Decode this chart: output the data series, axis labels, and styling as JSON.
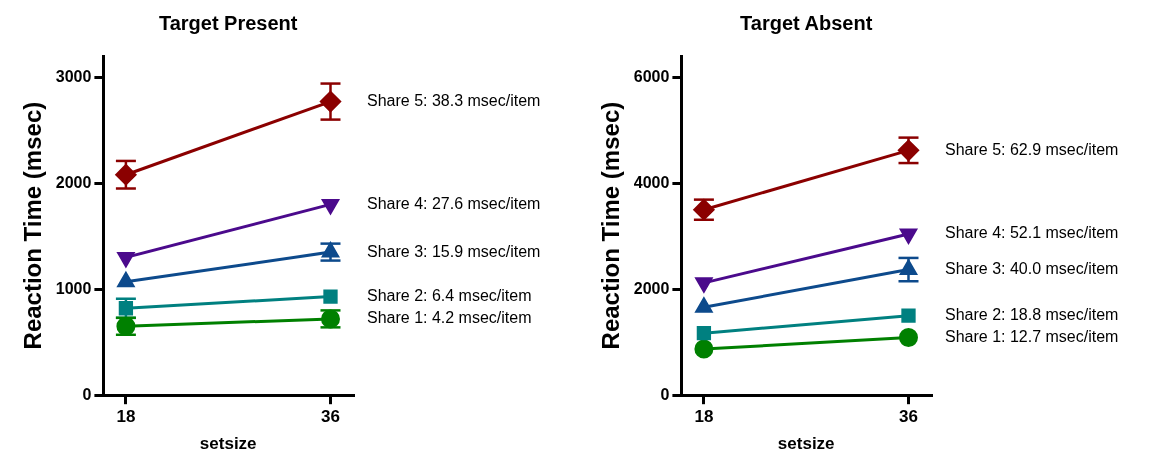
{
  "chart_data": [
    {
      "type": "line",
      "title": "Target Present",
      "xlabel": "setsize",
      "ylabel": "Reaction Time (msec)",
      "categories": [
        "18",
        "36"
      ],
      "ylim": [
        0,
        3200
      ],
      "yticks": [
        0,
        1000,
        2000,
        3000
      ],
      "grid": false,
      "legend": "right",
      "series": [
        {
          "name": "Share 5: 38.3 msec/item",
          "color": "#8b0000",
          "marker": "diamond",
          "values": [
            2080,
            2770
          ],
          "errors": [
            130,
            170
          ]
        },
        {
          "name": "Share 4: 27.6 msec/item",
          "color": "#4b0a8c",
          "marker": "triangle-down",
          "values": [
            1300,
            1800
          ]
        },
        {
          "name": "Share 3: 15.9 msec/item",
          "color": "#0d4a8c",
          "marker": "triangle",
          "values": [
            1070,
            1350
          ],
          "errors": [
            null,
            80
          ]
        },
        {
          "name": "Share 2: 6.4 msec/item",
          "color": "#008080",
          "marker": "square",
          "values": [
            820,
            930
          ],
          "errors": [
            90,
            null
          ]
        },
        {
          "name": "Share 1: 4.2 msec/item",
          "color": "#008000",
          "marker": "circle",
          "values": [
            650,
            720
          ],
          "errors": [
            80,
            80
          ]
        }
      ]
    },
    {
      "type": "line",
      "title": "Target Absent",
      "xlabel": "setsize",
      "ylabel": "Reaction Time (msec)",
      "categories": [
        "18",
        "36"
      ],
      "ylim": [
        0,
        6400
      ],
      "yticks": [
        0,
        2000,
        4000,
        6000
      ],
      "grid": false,
      "legend": "right",
      "series": [
        {
          "name": "Share 5: 62.9 msec/item",
          "color": "#8b0000",
          "marker": "diamond",
          "values": [
            3500,
            4620
          ],
          "errors": [
            190,
            240
          ]
        },
        {
          "name": "Share 4: 52.1 msec/item",
          "color": "#4b0a8c",
          "marker": "triangle-down",
          "values": [
            2120,
            3040
          ]
        },
        {
          "name": "Share 3: 40.0 msec/item",
          "color": "#0d4a8c",
          "marker": "triangle",
          "values": [
            1660,
            2370
          ],
          "errors": [
            null,
            220
          ]
        },
        {
          "name": "Share 2: 18.8 msec/item",
          "color": "#008080",
          "marker": "square",
          "values": [
            1170,
            1500
          ]
        },
        {
          "name": "Share 1: 12.7 msec/item",
          "color": "#008000",
          "marker": "circle",
          "values": [
            870,
            1090
          ]
        }
      ]
    }
  ]
}
